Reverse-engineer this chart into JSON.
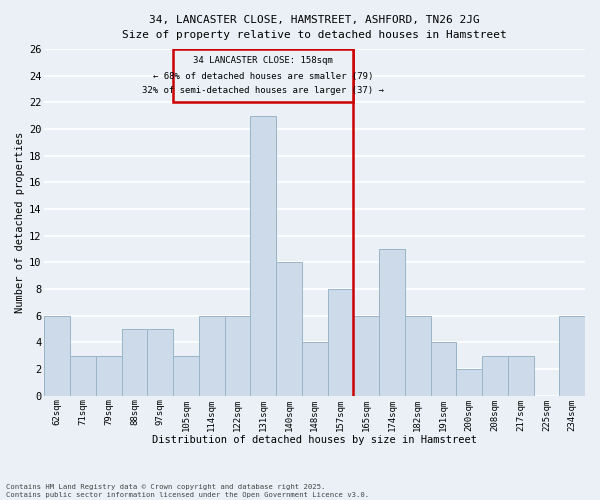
{
  "title1": "34, LANCASTER CLOSE, HAMSTREET, ASHFORD, TN26 2JG",
  "title2": "Size of property relative to detached houses in Hamstreet",
  "xlabel": "Distribution of detached houses by size in Hamstreet",
  "ylabel": "Number of detached properties",
  "categories": [
    "62sqm",
    "71sqm",
    "79sqm",
    "88sqm",
    "97sqm",
    "105sqm",
    "114sqm",
    "122sqm",
    "131sqm",
    "140sqm",
    "148sqm",
    "157sqm",
    "165sqm",
    "174sqm",
    "182sqm",
    "191sqm",
    "200sqm",
    "208sqm",
    "217sqm",
    "225sqm",
    "234sqm"
  ],
  "values": [
    6,
    3,
    3,
    5,
    5,
    3,
    6,
    6,
    21,
    10,
    4,
    8,
    6,
    11,
    6,
    4,
    2,
    3,
    3,
    0,
    6
  ],
  "bar_color": "#ccdaea",
  "bar_edge_color": "#9ab4c8",
  "reference_label": "34 LANCASTER CLOSE: 158sqm",
  "stat1": "← 68% of detached houses are smaller (79)",
  "stat2": "32% of semi-detached houses are larger (37) →",
  "box_color": "#cc0000",
  "ylim": [
    0,
    26
  ],
  "yticks": [
    0,
    2,
    4,
    6,
    8,
    10,
    12,
    14,
    16,
    18,
    20,
    22,
    24,
    26
  ],
  "footer1": "Contains HM Land Registry data © Crown copyright and database right 2025.",
  "footer2": "Contains public sector information licensed under the Open Government Licence v3.0.",
  "bg_color": "#eaf0f6",
  "grid_color": "#ffffff"
}
